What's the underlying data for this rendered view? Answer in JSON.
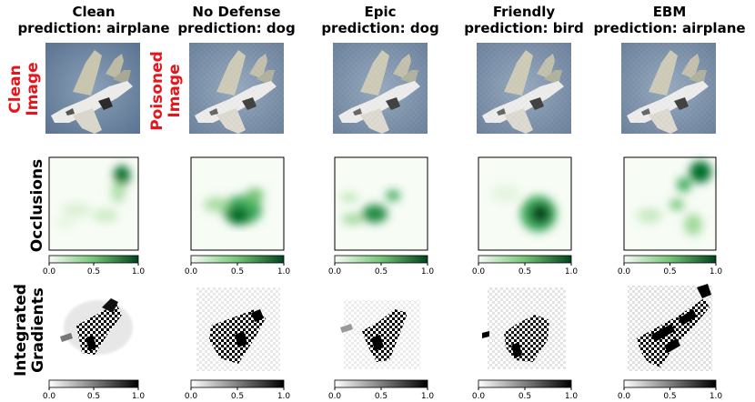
{
  "columns": [
    {
      "method": "Clean",
      "prediction": "prediction: airplane"
    },
    {
      "method": "No Defense",
      "prediction": "prediction: dog"
    },
    {
      "method": "Epic",
      "prediction": "prediction: dog"
    },
    {
      "method": "Friendly",
      "prediction": "prediction: bird"
    },
    {
      "method": "EBM",
      "prediction": "prediction: airplane"
    }
  ],
  "row_labels": {
    "clean_image": [
      "Clean",
      "Image"
    ],
    "poisoned_image": [
      "Poisoned",
      "Image"
    ],
    "occlusions": "Occlusions",
    "integrated_gradients": [
      "Integrated",
      "Gradients"
    ]
  },
  "colorbar_ticks": [
    "0.0",
    "0.5",
    "1.0"
  ],
  "colors": {
    "occlusion_colormap": "Greens",
    "gradient_colormap": "Greys",
    "row_label_red": "#e8141b",
    "sky": "#6e87a3"
  }
}
